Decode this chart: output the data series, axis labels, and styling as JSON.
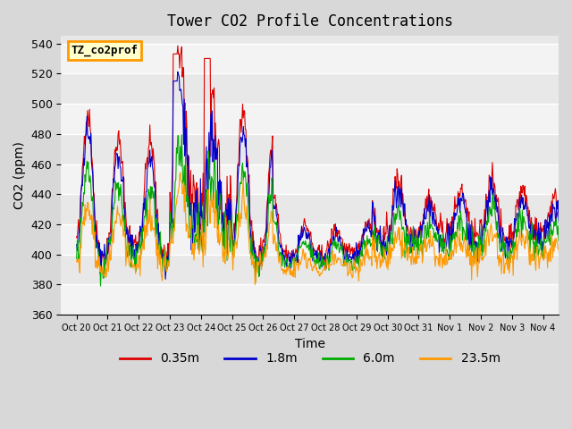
{
  "title": "Tower CO2 Profile Concentrations",
  "xlabel": "Time",
  "ylabel": "CO2 (ppm)",
  "ylim": [
    360,
    545
  ],
  "yticks": [
    360,
    380,
    400,
    420,
    440,
    460,
    480,
    500,
    520,
    540
  ],
  "fig_facecolor": "#d8d8d8",
  "ax_facecolor": "#e8e8e8",
  "line_colors": [
    "#dd0000",
    "#0000cc",
    "#00aa00",
    "#ff9900"
  ],
  "line_labels": [
    "0.35m",
    "1.8m",
    "6.0m",
    "23.5m"
  ],
  "legend_box_text": "TZ_co2prof",
  "legend_box_facecolor": "#ffffcc",
  "legend_box_edgecolor": "#ff9900",
  "n_days": 16,
  "xtick_labels": [
    "Oct 20",
    "Oct 21",
    "Oct 22",
    "Oct 23",
    "Oct 24",
    "Oct 25",
    "Oct 26",
    "Oct 27",
    "Oct 28",
    "Oct 29",
    "Oct 30",
    "Oct 31",
    "Nov 1",
    "Nov 2",
    "Nov 3",
    "Nov 4"
  ]
}
